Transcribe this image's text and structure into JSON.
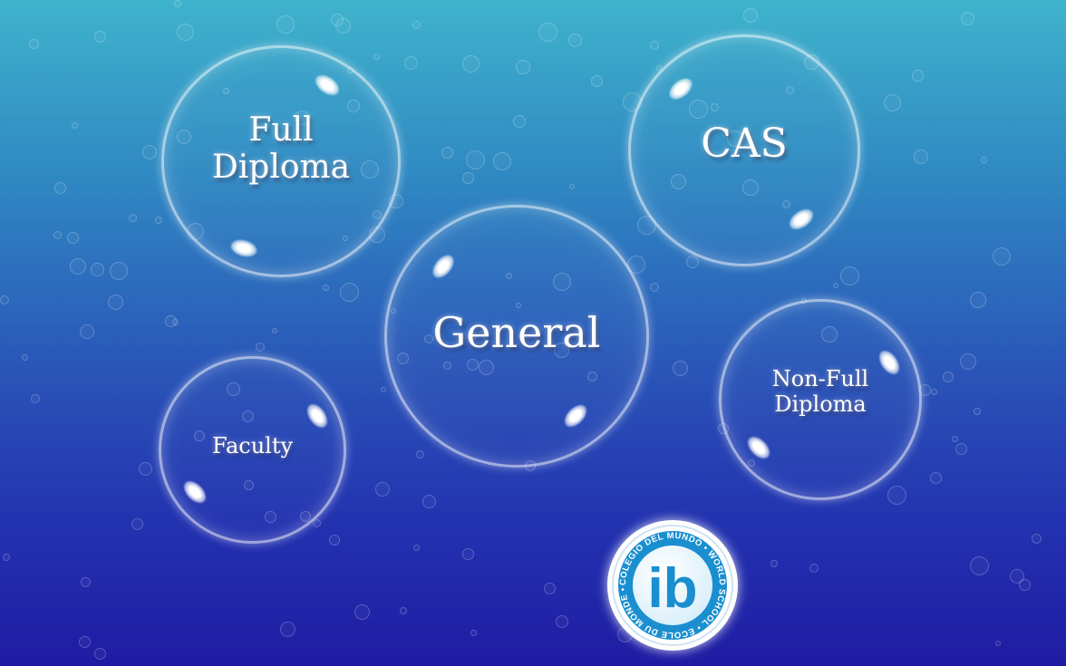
{
  "buttons": {
    "full_diploma": "Full\nDiploma",
    "cas": "CAS",
    "general": "General",
    "faculty": "Faculty",
    "non_full_diploma": "Non-Full\nDiploma"
  },
  "logo": {
    "mark": "ib",
    "ring_text": "COLEGIO DEL MUNDO • WORLD SCHOOL • ÉCOLE DU MONDE •"
  },
  "colors": {
    "background_top": "#3fb3cc",
    "background_bottom": "#1f1ca3",
    "logo_blue": "#1a8fd0"
  }
}
